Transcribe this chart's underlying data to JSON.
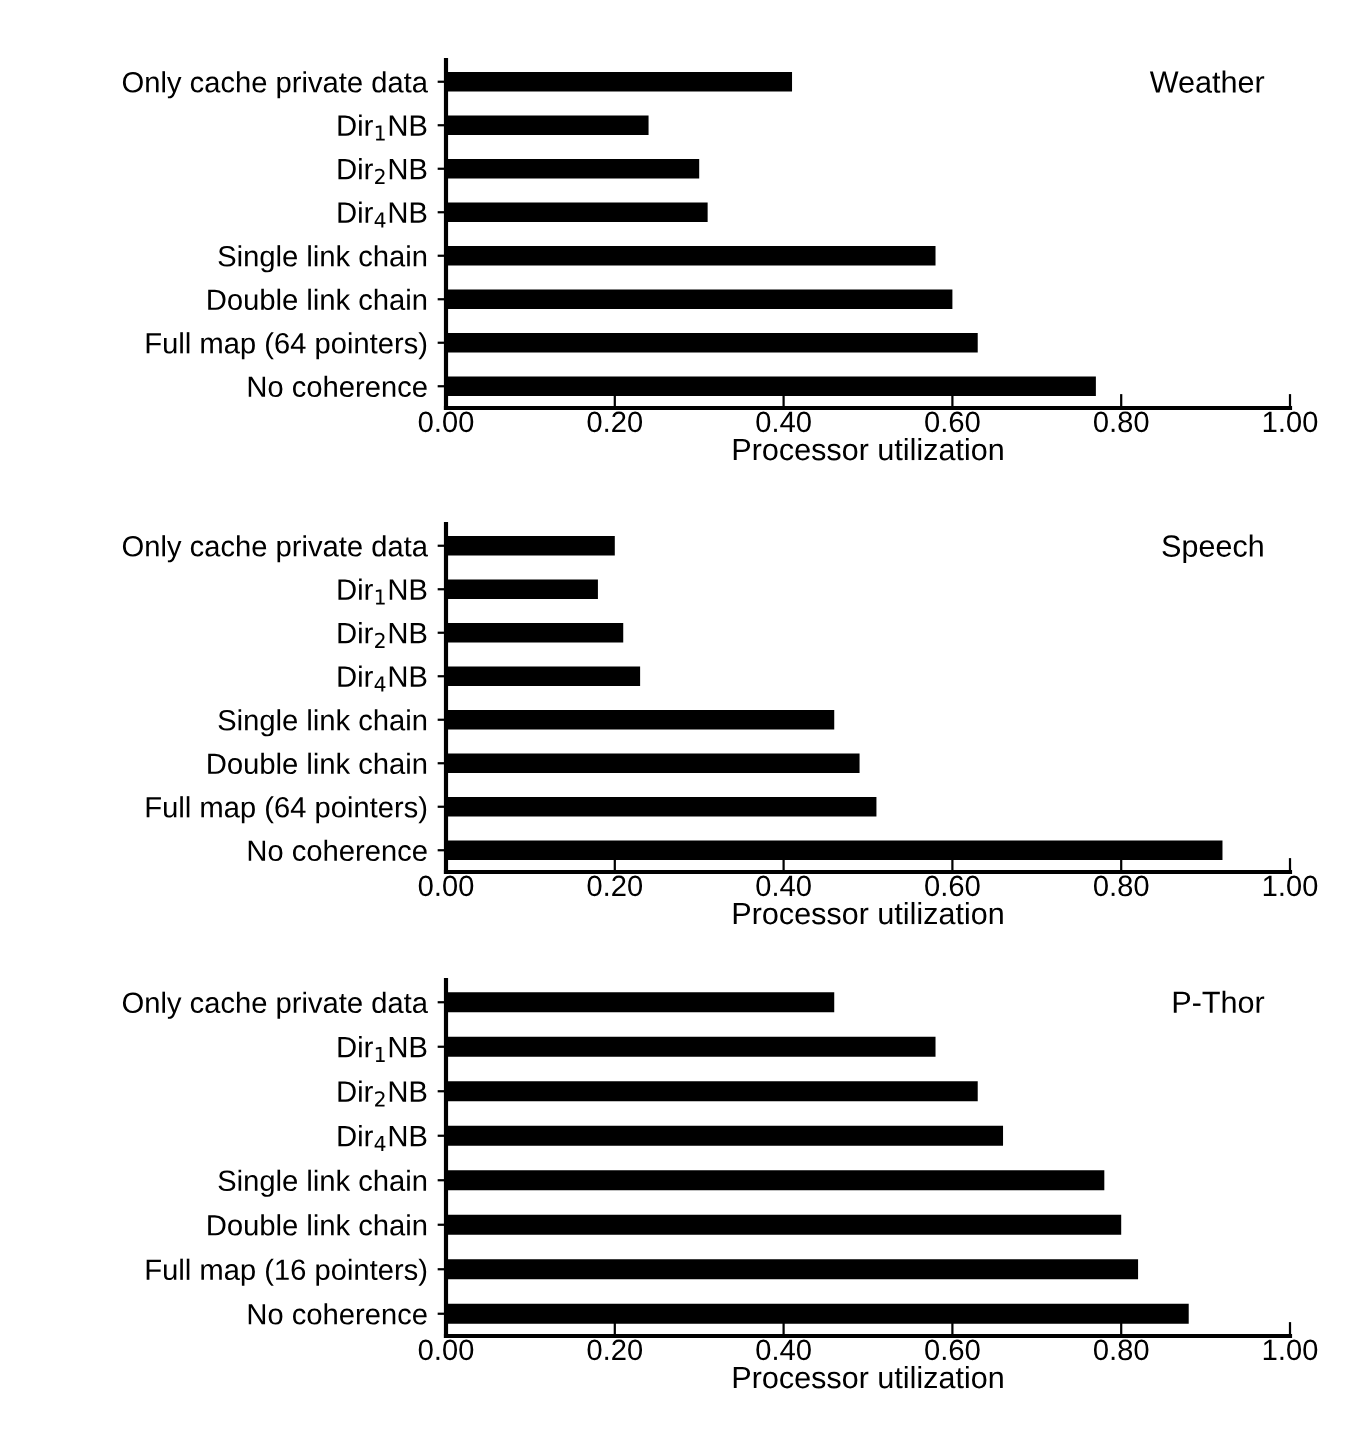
{
  "chart_data": [
    {
      "type": "bar",
      "orientation": "horizontal",
      "title": "Weather",
      "xlabel": "Processor utilization",
      "categories": [
        "Only cache private data",
        "Dir$_{1}$NB",
        "Dir$_{2}$NB",
        "Dir$_{4}$NB",
        "Single link chain",
        "Double link chain",
        "Full map (64 pointers)",
        "No coherence"
      ],
      "values": [
        0.41,
        0.24,
        0.3,
        0.31,
        0.58,
        0.6,
        0.63,
        0.77
      ],
      "color": "#000000",
      "xlim": [
        0,
        1
      ],
      "xticks": [
        {
          "value": 0,
          "label": "0.00"
        },
        {
          "value": 0.2,
          "label": "0.20"
        },
        {
          "value": 0.4,
          "label": "0.40"
        },
        {
          "value": 0.6,
          "label": "0.60"
        },
        {
          "value": 0.8,
          "label": "0.80"
        },
        {
          "value": 1,
          "label": "1.00"
        }
      ],
      "grid": false,
      "legend": false
    },
    {
      "type": "bar",
      "orientation": "horizontal",
      "title": "Speech",
      "xlabel": "Processor utilization",
      "categories": [
        "Only cache private data",
        "Dir$_{1}$NB",
        "Dir$_{2}$NB",
        "Dir$_{4}$NB",
        "Single link chain",
        "Double link chain",
        "Full map (64 pointers)",
        "No coherence"
      ],
      "values": [
        0.2,
        0.18,
        0.21,
        0.23,
        0.46,
        0.49,
        0.51,
        0.92
      ],
      "color": "#000000",
      "xlim": [
        0,
        1
      ],
      "xticks": [
        {
          "value": 0,
          "label": "0.00"
        },
        {
          "value": 0.2,
          "label": "0.20"
        },
        {
          "value": 0.4,
          "label": "0.40"
        },
        {
          "value": 0.6,
          "label": "0.60"
        },
        {
          "value": 0.8,
          "label": "0.80"
        },
        {
          "value": 1,
          "label": "1.00"
        }
      ],
      "grid": false,
      "legend": false
    },
    {
      "type": "bar",
      "orientation": "horizontal",
      "title": "P-Thor",
      "xlabel": "Processor utilization",
      "categories": [
        "Only cache private data",
        "Dir$_{1}$NB",
        "Dir$_{2}$NB",
        "Dir$_{4}$NB",
        "Single link chain",
        "Double link chain",
        "Full map (16 pointers)",
        "No coherence"
      ],
      "values": [
        0.46,
        0.58,
        0.63,
        0.66,
        0.78,
        0.8,
        0.82,
        0.88
      ],
      "color": "#000000",
      "xlim": [
        0,
        1
      ],
      "xticks": [
        {
          "value": 0,
          "label": "0.00"
        },
        {
          "value": 0.2,
          "label": "0.20"
        },
        {
          "value": 0.4,
          "label": "0.40"
        },
        {
          "value": 0.6,
          "label": "0.60"
        },
        {
          "value": 0.8,
          "label": "0.80"
        },
        {
          "value": 1,
          "label": "1.00"
        }
      ],
      "grid": false,
      "legend": false
    }
  ]
}
